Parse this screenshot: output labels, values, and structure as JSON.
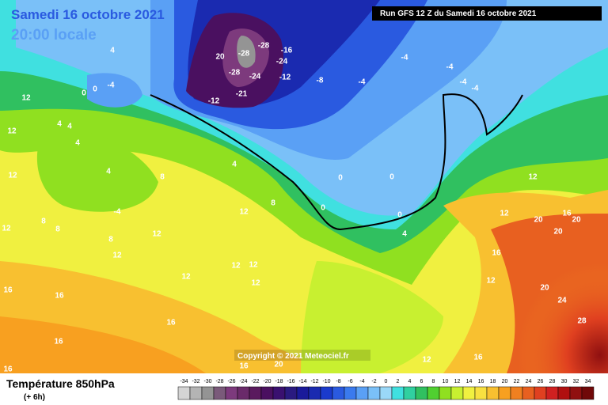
{
  "header": {
    "date": "Samedi 16 octobre 2021",
    "time": "20:00 locale",
    "run": "Run GFS 12 Z du Samedi 16 octobre 2021"
  },
  "footer": {
    "title": "Température 850hPa",
    "lead": "(+ 6h)",
    "copyright": "Copyright © 2021 Meteociel.fr"
  },
  "legend": {
    "values": [
      -34,
      -32,
      -30,
      -28,
      -26,
      -24,
      -22,
      -20,
      -18,
      -16,
      -14,
      -12,
      -10,
      -8,
      -6,
      -4,
      -2,
      0,
      2,
      4,
      6,
      8,
      10,
      12,
      14,
      16,
      18,
      20,
      22,
      24,
      26,
      28,
      30,
      32,
      34
    ],
    "colors": [
      "#d4d4d4",
      "#b4b4b4",
      "#949494",
      "#7a5a7a",
      "#7d3a7d",
      "#6a2a6a",
      "#5a1a5e",
      "#4a1060",
      "#3a1070",
      "#2a1a80",
      "#1a1a9a",
      "#1a2ab0",
      "#1a3acc",
      "#2a5ae0",
      "#3a7aee",
      "#5aa0f5",
      "#7ac0f8",
      "#9ad8f8",
      "#40e0e0",
      "#30d0a0",
      "#30c060",
      "#50d030",
      "#90e020",
      "#c8f030",
      "#f0f040",
      "#f8e040",
      "#f8c030",
      "#f8a020",
      "#f08020",
      "#e86020",
      "#e04020",
      "#d02020",
      "#b01010",
      "#901010",
      "#700808"
    ]
  },
  "map_labels": [
    -28,
    -28,
    -24,
    20,
    -28,
    -24,
    -16,
    -12,
    -8,
    -4,
    -12,
    -21,
    -4,
    -4,
    -4,
    -4,
    -4,
    4,
    0,
    0,
    12,
    4,
    4,
    12,
    4,
    4,
    8,
    12,
    -4,
    12,
    4,
    0,
    0,
    0,
    0,
    4,
    8,
    8,
    12,
    12,
    8,
    12,
    12,
    12,
    12,
    12,
    16,
    16,
    16,
    16,
    16,
    16,
    20,
    12,
    12,
    16,
    20,
    20,
    20,
    16,
    12,
    20,
    24,
    28,
    16,
    12,
    8
  ]
}
